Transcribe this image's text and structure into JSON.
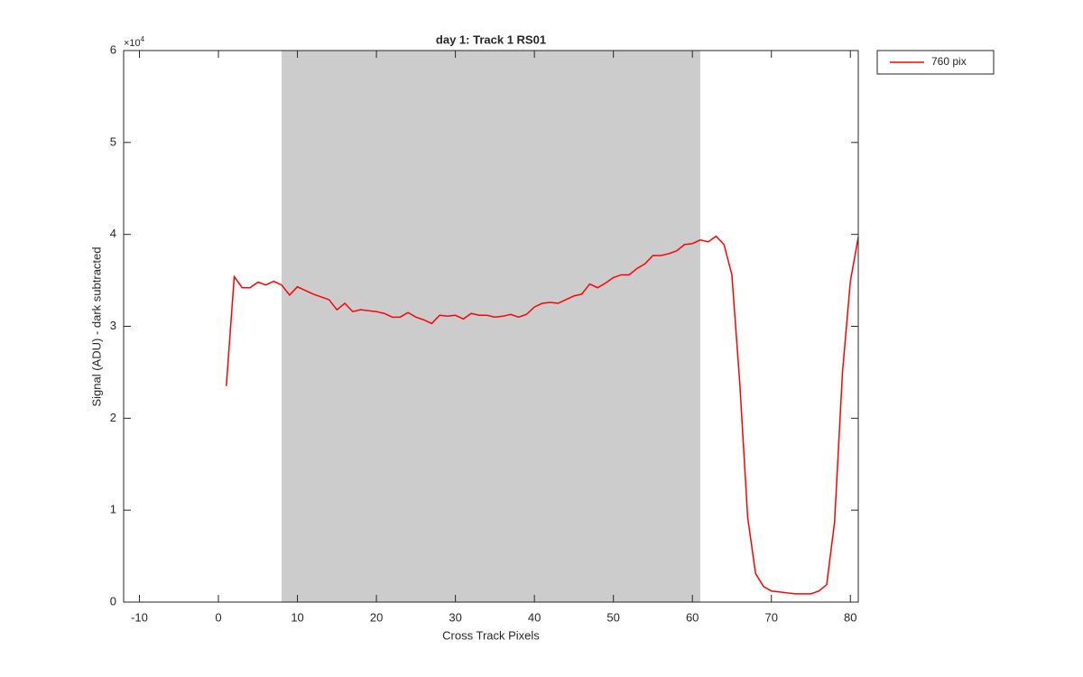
{
  "chart_data": {
    "type": "line",
    "title": "day 1: Track 1  RS01",
    "x_label": "Cross Track Pixels",
    "y_label": "Signal (ADU) - dark subtracted",
    "y_multiplier": {
      "base": "×10",
      "exponent": "4"
    },
    "x": [
      1,
      2,
      3,
      4,
      5,
      6,
      7,
      8,
      9,
      10,
      11,
      12,
      13,
      14,
      15,
      16,
      17,
      18,
      19,
      20,
      21,
      22,
      23,
      24,
      25,
      26,
      27,
      28,
      29,
      30,
      31,
      32,
      33,
      34,
      35,
      36,
      37,
      38,
      39,
      40,
      41,
      42,
      43,
      44,
      45,
      46,
      47,
      48,
      49,
      50,
      51,
      52,
      53,
      54,
      55,
      56,
      57,
      58,
      59,
      60,
      61,
      62,
      63,
      64,
      65,
      66,
      67,
      68,
      69,
      70,
      71,
      72,
      73,
      74,
      75,
      76,
      77,
      78,
      79,
      80,
      81
    ],
    "series": [
      {
        "name": "760 pix",
        "color": "#ff0000",
        "values": [
          23500,
          35400,
          34200,
          34200,
          34800,
          34500,
          34900,
          34500,
          33400,
          34300,
          33900,
          33500,
          33200,
          32900,
          31800,
          32500,
          31600,
          31800,
          31700,
          31600,
          31400,
          31000,
          31000,
          31500,
          31000,
          30700,
          30300,
          31200,
          31100,
          31200,
          30800,
          31400,
          31200,
          31200,
          31000,
          31100,
          31300,
          31000,
          31300,
          32100,
          32500,
          32600,
          32500,
          32900,
          33300,
          33500,
          34600,
          34200,
          34700,
          35300,
          35600,
          35600,
          36300,
          36800,
          37700,
          37700,
          37900,
          38200,
          38900,
          39000,
          39400,
          39200,
          39800,
          38900,
          35600,
          23800,
          9200,
          3100,
          1700,
          1200,
          1100,
          1000,
          900,
          900,
          900,
          1200,
          1900,
          8700,
          25000,
          34900,
          39700
        ]
      }
    ],
    "shaded_region": {
      "x": [
        8,
        61
      ],
      "color": "#cccccc"
    },
    "xlim": [
      -12,
      81
    ],
    "ylim": [
      0,
      60000
    ],
    "xticks": [
      -10,
      0,
      10,
      20,
      30,
      40,
      50,
      60,
      70,
      80
    ],
    "yticks": [
      0,
      {
        "value": 10000,
        "label": "1"
      },
      {
        "value": 20000,
        "label": "2"
      },
      {
        "value": 30000,
        "label": "3"
      },
      {
        "value": 40000,
        "label": "4"
      },
      {
        "value": 50000,
        "label": "5"
      },
      {
        "value": 60000,
        "label": "6"
      }
    ],
    "legend": "northeastoutside",
    "grid": false
  }
}
